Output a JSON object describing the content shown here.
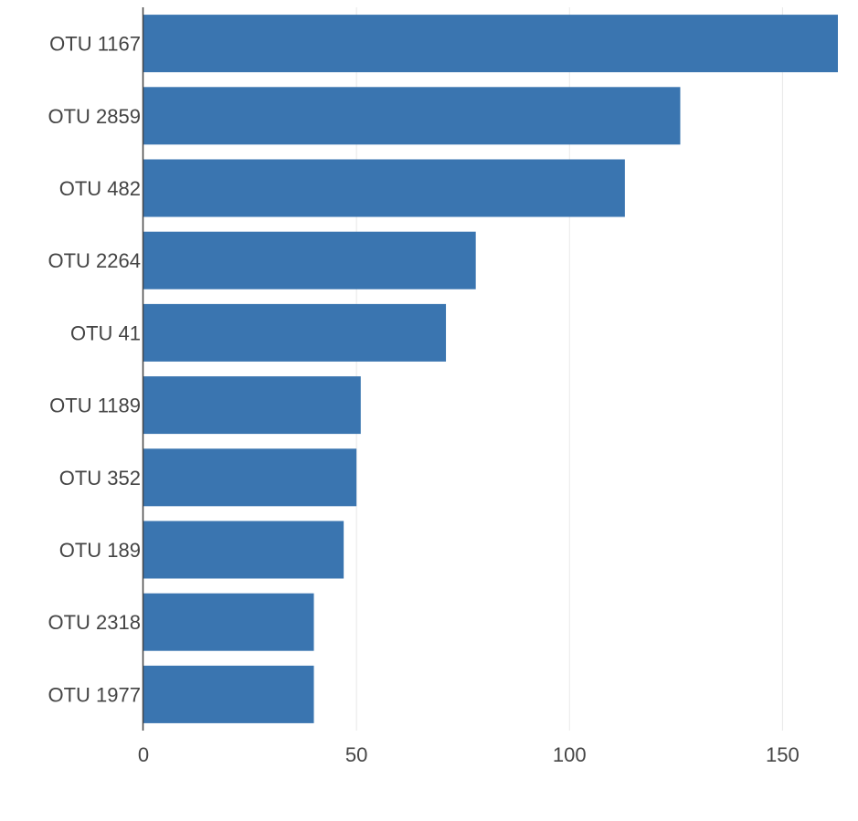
{
  "chart_data": {
    "type": "bar",
    "orientation": "horizontal",
    "categories": [
      "OTU 1167",
      "OTU 2859",
      "OTU 482",
      "OTU 2264",
      "OTU 41",
      "OTU 1189",
      "OTU 352",
      "OTU 189",
      "OTU 2318",
      "OTU 1977"
    ],
    "values": [
      163,
      126,
      113,
      78,
      71,
      51,
      50,
      47,
      40,
      40
    ],
    "x_ticks": [
      0,
      50,
      100,
      150
    ],
    "xlim": [
      0,
      163
    ],
    "grid": "vertical",
    "bar_color": "#3a75b0",
    "grid_color": "#e8e8e8",
    "axis_color": "#444444"
  }
}
